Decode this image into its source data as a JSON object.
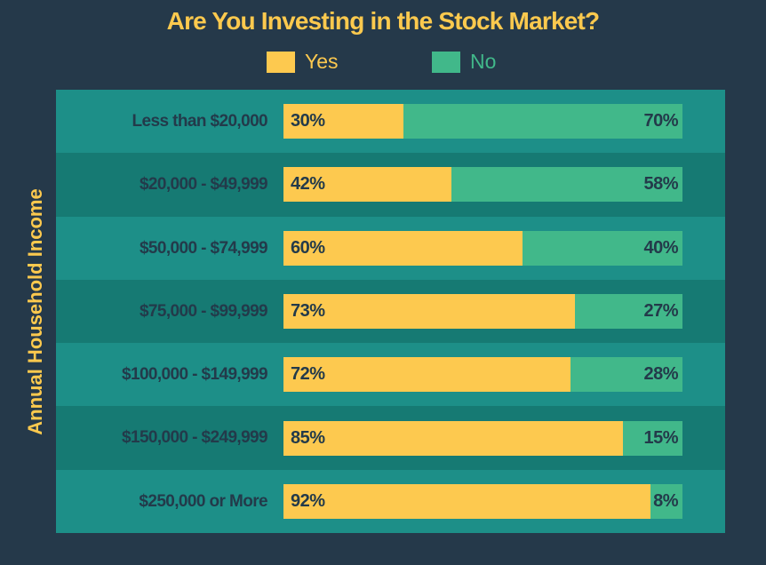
{
  "colors": {
    "background": "#25394a",
    "title": "#fcc94e",
    "yes": "#fdc94f",
    "no": "#41b88a",
    "row_light": "#1d8f88",
    "row_dark": "#167a73",
    "text_dark": "#233a4a"
  },
  "title": "Are You Investing in the Stock Market?",
  "legend": {
    "yes": "Yes",
    "no": "No"
  },
  "ylabel": "Annual Household Income",
  "rows": [
    {
      "label": "Less than $20,000",
      "yes": 30,
      "no": 70,
      "yes_text": "30%",
      "no_text": "70%"
    },
    {
      "label": "$20,000 - $49,999",
      "yes": 42,
      "no": 58,
      "yes_text": "42%",
      "no_text": "58%"
    },
    {
      "label": "$50,000 - $74,999",
      "yes": 60,
      "no": 40,
      "yes_text": "60%",
      "no_text": "40%"
    },
    {
      "label": "$75,000 - $99,999",
      "yes": 73,
      "no": 27,
      "yes_text": "73%",
      "no_text": "27%"
    },
    {
      "label": "$100,000 - $149,999",
      "yes": 72,
      "no": 28,
      "yes_text": "72%",
      "no_text": "28%"
    },
    {
      "label": "$150,000 - $249,999",
      "yes": 85,
      "no": 15,
      "yes_text": "85%",
      "no_text": "15%"
    },
    {
      "label": "$250,000 or More",
      "yes": 92,
      "no": 8,
      "yes_text": "92%",
      "no_text": "8%"
    }
  ],
  "chart_data": {
    "type": "bar",
    "orientation": "horizontal",
    "stacked": true,
    "normalized": true,
    "title": "Are You Investing in the Stock Market?",
    "xlabel": "",
    "ylabel": "Annual Household Income",
    "categories": [
      "Less than $20,000",
      "$20,000 - $49,999",
      "$50,000 - $74,999",
      "$75,000 - $99,999",
      "$100,000 - $149,999",
      "$150,000 - $249,999",
      "$250,000 or More"
    ],
    "series": [
      {
        "name": "Yes",
        "color": "#fdc94f",
        "values": [
          30,
          42,
          60,
          73,
          72,
          85,
          92
        ]
      },
      {
        "name": "No",
        "color": "#41b88a",
        "values": [
          70,
          58,
          40,
          27,
          28,
          15,
          8
        ]
      }
    ],
    "xlim": [
      0,
      100
    ],
    "units": "%",
    "grid": false,
    "legend_position": "top"
  }
}
